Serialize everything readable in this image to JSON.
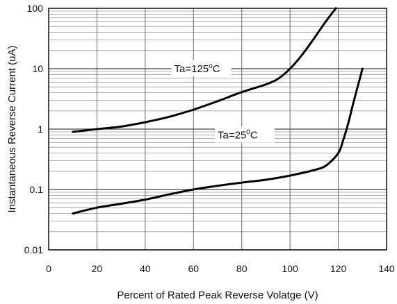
{
  "chart_data": {
    "type": "line",
    "xlabel": "Percent of Rated Peak Reverse Volatge (V)",
    "ylabel": "Instantaneous Reverse Current (uA)",
    "xlim": [
      0,
      140
    ],
    "ylim": [
      0.01,
      100
    ],
    "yscale": "log",
    "grid": true,
    "x_ticks": [
      "0",
      "20",
      "40",
      "60",
      "80",
      "100",
      "120",
      "140"
    ],
    "y_ticks": [
      "0.01",
      "0.1",
      "1",
      "10",
      "100"
    ],
    "series": [
      {
        "name": "Ta=125°C",
        "label_main": "Ta=125",
        "label_sup": "o",
        "label_unit": "C",
        "label_at": [
          52,
          10
        ],
        "x": [
          10,
          20,
          30,
          40,
          50,
          60,
          70,
          80,
          90,
          95,
          100,
          105,
          110,
          115,
          119
        ],
        "y": [
          0.9,
          1.0,
          1.1,
          1.3,
          1.6,
          2.1,
          2.9,
          4.1,
          5.5,
          6.8,
          10,
          17,
          32,
          62,
          100
        ]
      },
      {
        "name": "Ta=25°C",
        "label_main": "Ta=25",
        "label_sup": "0",
        "label_unit": "C",
        "label_at": [
          70,
          0.8
        ],
        "x": [
          10,
          20,
          30,
          40,
          50,
          60,
          70,
          80,
          90,
          100,
          110,
          115,
          120,
          122,
          124,
          126,
          128,
          130
        ],
        "y": [
          0.04,
          0.05,
          0.058,
          0.068,
          0.083,
          0.1,
          0.115,
          0.13,
          0.145,
          0.17,
          0.21,
          0.25,
          0.4,
          0.65,
          1.2,
          2.5,
          5.0,
          10
        ]
      }
    ]
  }
}
